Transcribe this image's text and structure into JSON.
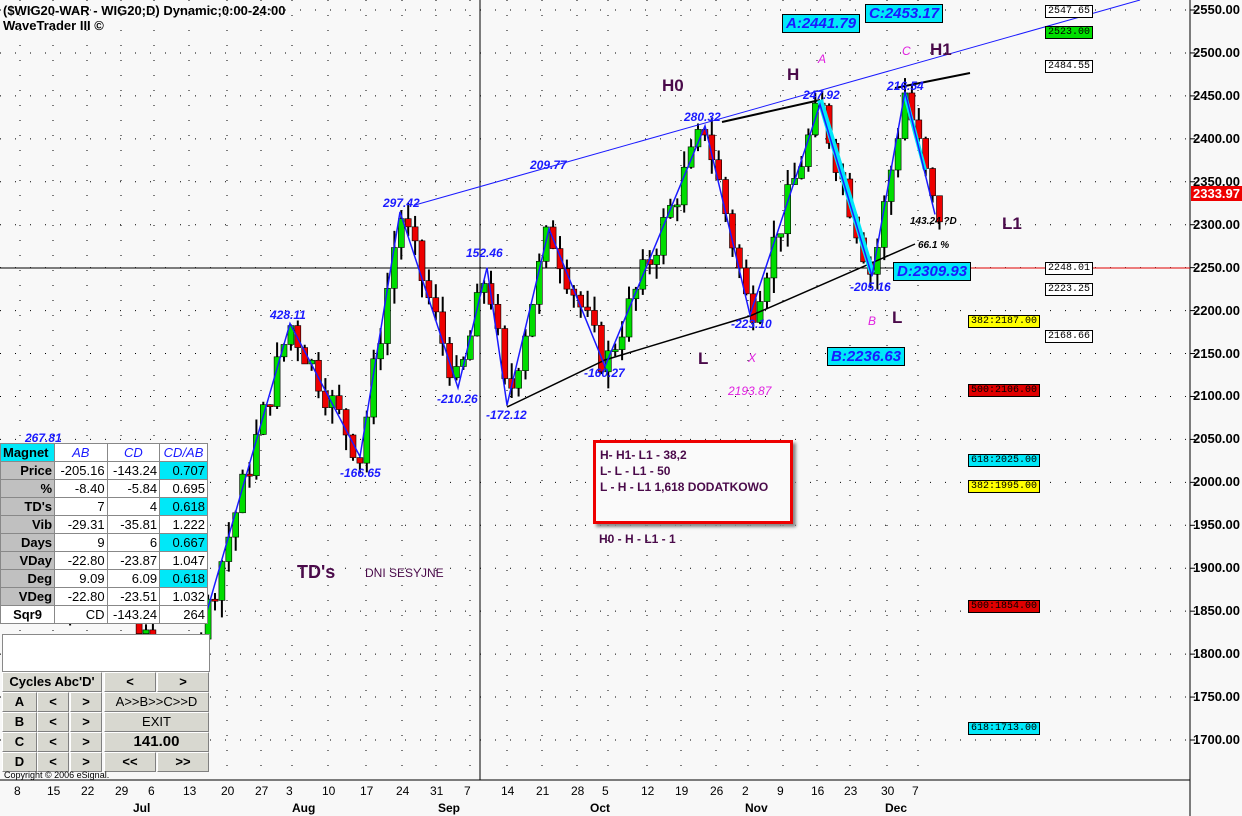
{
  "header": {
    "title": "($WIG20-WAR - WIG20;D) Dynamic;0:00-24:00",
    "subtitle": "WaveTrader III ©"
  },
  "copyright": "Copyright © 2006 eSignal.",
  "chart_data": {
    "type": "candlestick",
    "symbol": "$WIG20-WAR",
    "ylim": [
      1650,
      2560
    ],
    "y_ticks": [
      2550,
      2500,
      2450,
      2400,
      2350,
      2300,
      2250,
      2200,
      2150,
      2100,
      2050,
      2000,
      1950,
      1900,
      1850,
      1800,
      1750,
      1700
    ],
    "last_price": "2333.97",
    "x_ticks": [
      "8",
      "15",
      "22",
      "29",
      "6",
      "13",
      "20",
      "27",
      "3",
      "10",
      "17",
      "24",
      "31",
      "7",
      "14",
      "21",
      "28",
      "5",
      "12",
      "19",
      "26",
      "2",
      "9",
      "16",
      "23",
      "30",
      "7"
    ],
    "months": [
      "Jul",
      "Aug",
      "Sep",
      "Oct",
      "Nov",
      "Dec"
    ],
    "zigzag_pivots": [
      {
        "price": 1850,
        "label": ""
      },
      {
        "price": 2185,
        "label": "428.11"
      },
      {
        "price": 2030,
        "label": "-166.65"
      },
      {
        "price": 2315,
        "label": "297.42"
      },
      {
        "price": 2110,
        "label": "-210.26"
      },
      {
        "price": 2250,
        "label": "152.46"
      },
      {
        "price": 2090,
        "label": "-172.12"
      },
      {
        "price": 2295,
        "label": "209.77"
      },
      {
        "price": 2135,
        "label": "-160.27"
      },
      {
        "price": 2415,
        "label": "280.32"
      },
      {
        "price": 2195,
        "label": "-223.10"
      },
      {
        "price": 2440,
        "label": "247.92"
      },
      {
        "price": 2240,
        "label": "-205.16"
      },
      {
        "price": 2455,
        "label": "216.54"
      },
      {
        "price": 2312,
        "label": "143.24 ?D"
      }
    ],
    "extra_labels": {
      "left_pivot": "267.81",
      "retracement": "66.1 %"
    },
    "levels": [
      "2547.65",
      "2523.00",
      "2484.55",
      "2248.01",
      "2223.25",
      "2168.66"
    ],
    "fib_levels": [
      {
        "label": "382:2187.00",
        "color": "#ffff00"
      },
      {
        "label": "500:2106.00",
        "color": "#e00000"
      },
      {
        "label": "618:2025.00",
        "color": "#00e8f8"
      },
      {
        "label": "382:1995.00",
        "color": "#ffff00"
      },
      {
        "label": "500:1854.00",
        "color": "#e00000"
      },
      {
        "label": "618:1713.00",
        "color": "#00e8f8"
      }
    ],
    "pattern": {
      "A": "A:2441.79",
      "B": "B:2236.63",
      "C": "C:2453.17",
      "D": "D:2309.93",
      "X": "2193.87"
    }
  },
  "annotations": {
    "H0": "H0",
    "H": "H",
    "H1": "H1",
    "L": "L",
    "L_b": "L",
    "L1": "L1",
    "a": "A",
    "c": "C",
    "b": "B",
    "x": "X",
    "tds": "TD's",
    "dni": "DNI SESYJNE",
    "hh": "H0 - H - L1 - 1"
  },
  "note": {
    "lines": [
      "H- H1- L1  - 38,2",
      "L- L  - L1   - 50",
      "L  - H - L1 1,618 DODATKOWO"
    ]
  },
  "magnet": {
    "headers": [
      "Magnet",
      "AB",
      "CD",
      "CD/AB"
    ],
    "rows": [
      {
        "label": "Price",
        "ab": "-205.16",
        "cd": "-143.24",
        "r": "0.707",
        "hl": true
      },
      {
        "label": "%",
        "ab": "-8.40",
        "cd": "-5.84",
        "r": "0.695",
        "hl": false
      },
      {
        "label": "TD's",
        "ab": "7",
        "cd": "4",
        "r": "0.618",
        "hl": true
      },
      {
        "label": "Vib",
        "ab": "-29.31",
        "cd": "-35.81",
        "r": "1.222",
        "hl": false
      },
      {
        "label": "Days",
        "ab": "9",
        "cd": "6",
        "r": "0.667",
        "hl": true
      },
      {
        "label": "VDay",
        "ab": "-22.80",
        "cd": "-23.87",
        "r": "1.047",
        "hl": false
      },
      {
        "label": "Deg",
        "ab": "9.09",
        "cd": "6.09",
        "r": "0.618",
        "hl": true
      },
      {
        "label": "VDeg",
        "ab": "-22.80",
        "cd": "-23.51",
        "r": "1.032",
        "hl": false
      },
      {
        "label": "Sqr9",
        "ab": "CD",
        "cd": "-143.24",
        "r": "264",
        "hl": false
      }
    ]
  },
  "controls": {
    "cycles": "Cycles Abc'D'",
    "prev": "<",
    "next": ">",
    "a": "A",
    "b": "B",
    "c": "C",
    "d": "D",
    "seq": "A>>B>>C>>D",
    "exit": "EXIT",
    "value": "141.00",
    "back": "<<",
    "fwd": ">>"
  }
}
